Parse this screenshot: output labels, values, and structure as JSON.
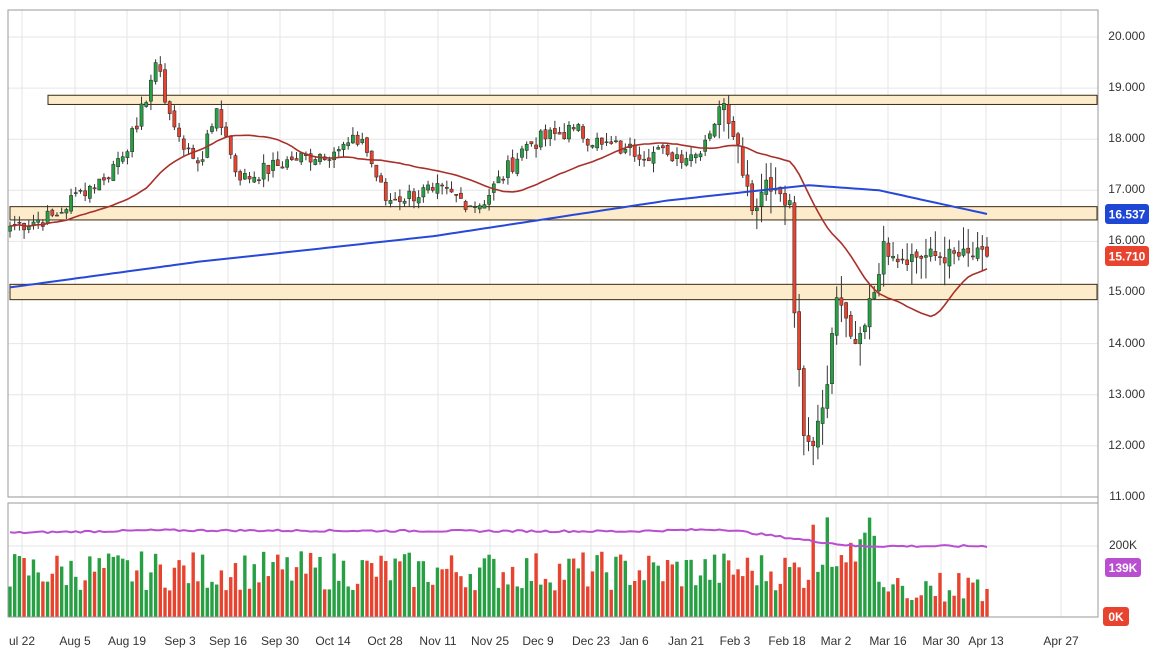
{
  "colors": {
    "up": "#26a043",
    "down": "#e8432f",
    "ma_fast": "#a8302a",
    "ma_slow": "#2848d8",
    "volume_ma": "#b94fd0",
    "zone_fill": "#fdeccb",
    "zone_border": "#3a2a10",
    "grid": "#e6e6e6",
    "pane_border": "#9a9a9a",
    "badge_slow": "#1f47d6",
    "badge_price": "#e8432f",
    "badge_volume": "#b94fd0",
    "badge_zero": "#e8432f"
  },
  "chart_data": {
    "type": "candlestick",
    "price_axis": {
      "ticks": [
        "20.000",
        "19.000",
        "18.000",
        "17.000",
        "16.000",
        "15.000",
        "14.000",
        "13.000",
        "12.000",
        "11.000"
      ],
      "ylim": [
        11.0,
        20.0
      ]
    },
    "volume_axis": {
      "ticks": [
        "200K",
        "0K"
      ]
    },
    "x_axis": {
      "labels": [
        "ul 22",
        "Aug 5",
        "Aug 19",
        "Sep 3",
        "Sep 16",
        "Sep 30",
        "Oct 14",
        "Oct 28",
        "Nov 11",
        "Nov 25",
        "Dec 9",
        "Dec 23",
        "Jan 6",
        "Jan 21",
        "Feb 3",
        "Feb 18",
        "Mar 2",
        "Mar 16",
        "Mar 30",
        "Apr 13",
        "Apr 27"
      ]
    },
    "markers": {
      "last_price": "15.710",
      "slow_ma_value": "16.537",
      "volume_ma_value": "139K",
      "volume_zero": "0K"
    },
    "support_resistance_zones": [
      {
        "low": 18.68,
        "high": 18.86
      },
      {
        "low": 16.42,
        "high": 16.68
      },
      {
        "low": 14.86,
        "high": 15.16
      }
    ],
    "ohlc_keypoints": [
      {
        "date": "Jul 22",
        "close": 16.3
      },
      {
        "date": "Aug 5",
        "close": 16.5
      },
      {
        "date": "Aug 12",
        "close": 17.0
      },
      {
        "date": "Aug 19",
        "close": 17.2
      },
      {
        "date": "Aug 29",
        "close": 18.2
      },
      {
        "date": "Sep 4",
        "close": 19.5
      },
      {
        "date": "Sep 8",
        "close": 18.5
      },
      {
        "date": "Sep 12",
        "close": 17.8
      },
      {
        "date": "Sep 18",
        "close": 17.6
      },
      {
        "date": "Sep 22",
        "close": 18.6
      },
      {
        "date": "Sep 28",
        "close": 17.2
      },
      {
        "date": "Oct 14",
        "close": 17.6
      },
      {
        "date": "Oct 28",
        "close": 17.8
      },
      {
        "date": "Nov 4",
        "close": 18.0
      },
      {
        "date": "Nov 11",
        "close": 16.8
      },
      {
        "date": "Nov 25",
        "close": 17.0
      },
      {
        "date": "Dec 9",
        "close": 16.7
      },
      {
        "date": "Dec 23",
        "close": 17.9
      },
      {
        "date": "Jan 6",
        "close": 18.2
      },
      {
        "date": "Jan 14",
        "close": 17.9
      },
      {
        "date": "Jan 21",
        "close": 17.8
      },
      {
        "date": "Feb 3",
        "close": 17.7
      },
      {
        "date": "Feb 12",
        "close": 17.7
      },
      {
        "date": "Feb 20",
        "close": 18.7
      },
      {
        "date": "Feb 24",
        "close": 17.9
      },
      {
        "date": "Feb 28",
        "close": 16.6
      },
      {
        "date": "Mar 4",
        "close": 17.2
      },
      {
        "date": "Mar 10",
        "close": 16.8
      },
      {
        "date": "Mar 12",
        "close": 14.6
      },
      {
        "date": "Mar 15",
        "close": 12.2
      },
      {
        "date": "Mar 18",
        "close": 12.0
      },
      {
        "date": "Mar 22",
        "close": 13.2
      },
      {
        "date": "Mar 25",
        "close": 14.9
      },
      {
        "date": "Mar 30",
        "close": 14.0
      },
      {
        "date": "Apr 4",
        "close": 15.0
      },
      {
        "date": "Apr 8",
        "close": 16.0
      },
      {
        "date": "Apr 10",
        "close": 15.71
      }
    ],
    "volume_ma_keypoints": [
      {
        "date": "Jul 22",
        "value": 165
      },
      {
        "date": "Sep 3",
        "value": 170
      },
      {
        "date": "Jan 21",
        "value": 168
      },
      {
        "date": "Feb 20",
        "value": 172
      },
      {
        "date": "Mar 16",
        "value": 150
      },
      {
        "date": "Mar 30",
        "value": 139
      },
      {
        "date": "Apr 10",
        "value": 139
      }
    ]
  }
}
